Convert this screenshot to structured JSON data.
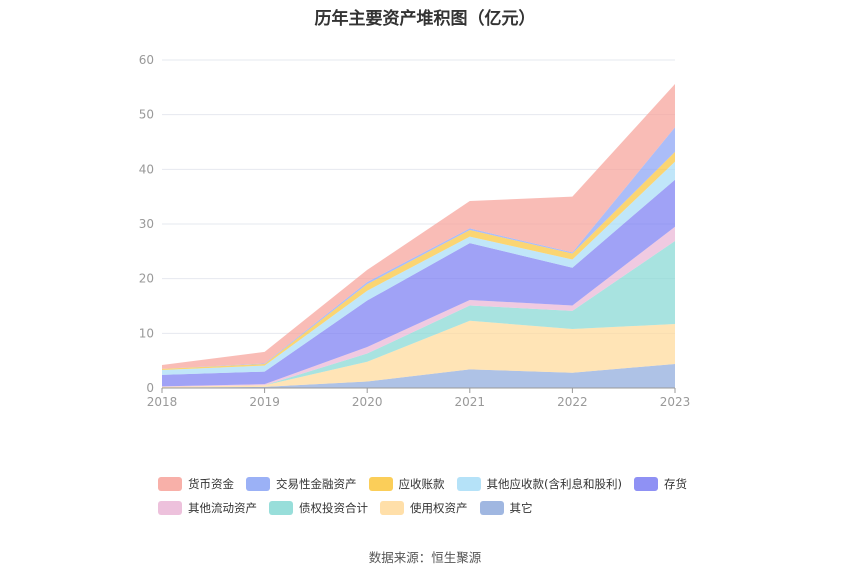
{
  "title": "历年主要资产堆积图（亿元）",
  "source": "数据来源：恒生聚源",
  "chart_data": {
    "type": "area",
    "stacked": true,
    "categories": [
      "2018",
      "2019",
      "2020",
      "2021",
      "2022",
      "2023"
    ],
    "ylim": [
      0,
      60
    ],
    "yticks": [
      0,
      10,
      20,
      30,
      40,
      50,
      60
    ],
    "grid": true,
    "legend_position": "bottom",
    "series": [
      {
        "name": "其它",
        "color": "#8faadc",
        "values": [
          0.1,
          0.2,
          1.2,
          3.4,
          2.8,
          4.4
        ]
      },
      {
        "name": "使用权资产",
        "color": "#ffd99a",
        "values": [
          0.1,
          0.3,
          3.6,
          8.9,
          8.0,
          7.3
        ]
      },
      {
        "name": "债权投资合计",
        "color": "#86d8d4",
        "values": [
          0.0,
          0.0,
          1.5,
          2.8,
          3.3,
          15.2
        ]
      },
      {
        "name": "其他流动资产",
        "color": "#eab6d6",
        "values": [
          0.1,
          0.2,
          1.2,
          1.0,
          1.0,
          2.6
        ]
      },
      {
        "name": "存货",
        "color": "#7b7ef2",
        "values": [
          2.1,
          2.3,
          8.5,
          10.4,
          6.9,
          8.6
        ]
      },
      {
        "name": "其他应收款(含利息和股利)",
        "color": "#a8ddf7",
        "values": [
          0.9,
          1.1,
          1.8,
          1.2,
          1.5,
          3.3
        ]
      },
      {
        "name": "应收账款",
        "color": "#fac53c",
        "values": [
          0.2,
          0.3,
          1.2,
          1.2,
          1.1,
          1.8
        ]
      },
      {
        "name": "交易性金融资产",
        "color": "#8aa3f5",
        "values": [
          0.0,
          0.1,
          0.4,
          0.3,
          0.2,
          4.5
        ]
      },
      {
        "name": "货币资金",
        "color": "#f7a29a",
        "values": [
          0.7,
          2.1,
          2.2,
          5.0,
          10.2,
          7.9
        ]
      }
    ],
    "legend_order": [
      "货币资金",
      "交易性金融资产",
      "应收账款",
      "其他应收款(含利息和股利)",
      "存货",
      "其他流动资产",
      "债权投资合计",
      "使用权资产",
      "其它"
    ]
  }
}
